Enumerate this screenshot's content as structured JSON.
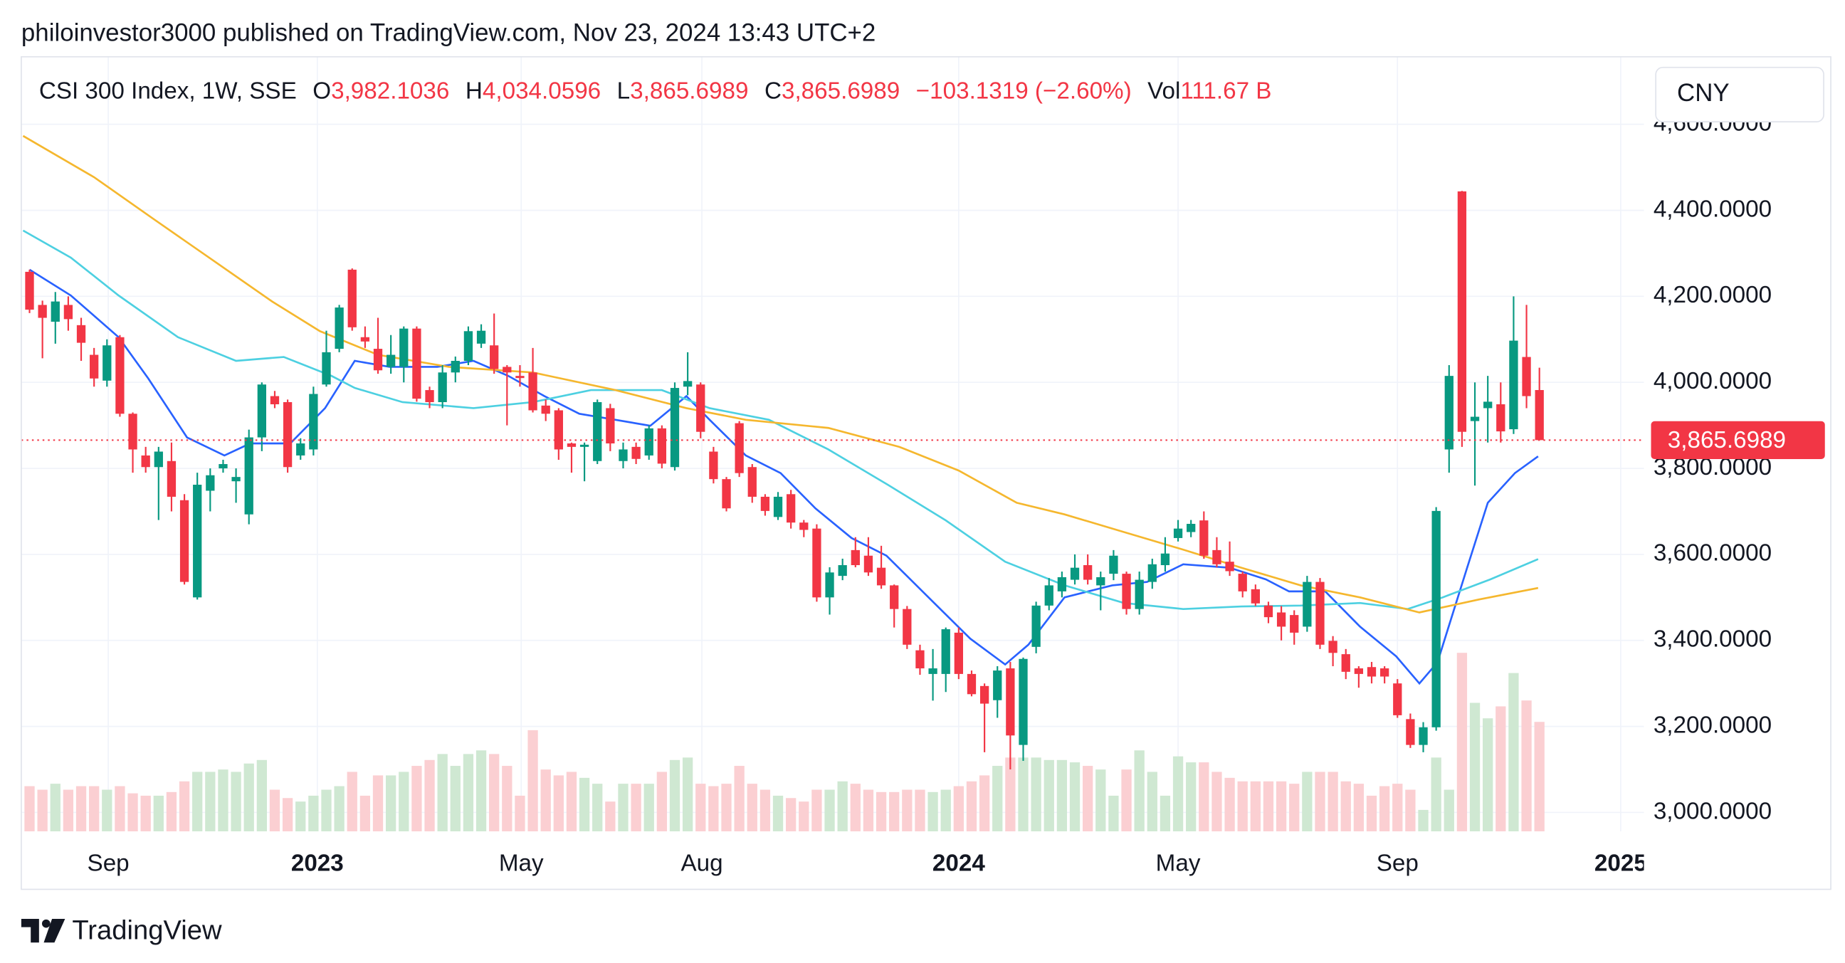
{
  "chart_data": {
    "type": "candlestick",
    "published": "philoinvestor3000 published on TradingView.com, Nov 23, 2024 13:43 UTC+2",
    "legend": {
      "symbol": "CSI 300 Index, 1W, SSE",
      "o": "O",
      "open": "3,982.1036",
      "h": "H",
      "high": "4,034.0596",
      "l": "L",
      "low": "3,865.6989",
      "c": "C",
      "close": "3,865.6989",
      "change": "−103.1319 (−2.60%)",
      "vol": "Vol",
      "volume": "111.67 B"
    },
    "currency": "CNY",
    "last_price_label": "3,865.6989",
    "brand": "TradingView",
    "colors": {
      "up": "#089981",
      "down": "#f23645",
      "up_volume": "#cfe8d2",
      "down_volume": "#fbcfd2"
    },
    "open": [
      4257,
      4180,
      4141,
      4180,
      4133,
      4064,
      4004,
      4105,
      3927,
      3830,
      3803,
      3817,
      3726,
      3500,
      3748,
      3800,
      3770,
      3693,
      3872,
      3968,
      3954,
      3830,
      3844,
      3995,
      4078,
      4262,
      4105,
      4078,
      4036,
      4036,
      4125,
      3982,
      3954,
      4023,
      4050,
      4090,
      4086,
      4036,
      4015,
      4023,
      3946,
      3935,
      3858,
      3850,
      3817,
      3940,
      3817,
      3850,
      3830,
      3893,
      3803,
      3990,
      3995,
      3839,
      3775,
      3905,
      3803,
      3734,
      3687,
      3740,
      3674,
      3660,
      3500,
      3550,
      3610,
      3597,
      3569,
      3528,
      3473,
      3377,
      3322,
      3322,
      3418,
      3322,
      3294,
      3261,
      3335,
      3157,
      3385,
      3481,
      3514,
      3541,
      3575,
      3528,
      3555,
      3555,
      3473,
      3536,
      3575,
      3638,
      3652,
      3679,
      3610,
      3583,
      3555,
      3519,
      3481,
      3465,
      3459,
      3432,
      3536,
      3399,
      3368,
      3335,
      3338,
      3335,
      3300,
      3217,
      3157,
      3198,
      3844,
      4444,
      3910,
      3940,
      3949,
      3891,
      4059,
      3982.1036
    ],
    "high": [
      4262,
      4190,
      4210,
      4200,
      4150,
      4080,
      4100,
      4110,
      3930,
      3850,
      3850,
      3860,
      3740,
      3790,
      3800,
      3820,
      3800,
      3890,
      4000,
      3980,
      3960,
      3870,
      3990,
      4120,
      4180,
      4265,
      4130,
      4150,
      4110,
      4130,
      4130,
      3990,
      4040,
      4060,
      4130,
      4135,
      4160,
      4040,
      4040,
      4080,
      3960,
      3940,
      3860,
      3860,
      3960,
      3950,
      3860,
      3860,
      3900,
      3900,
      4000,
      4070,
      4000,
      3850,
      3780,
      3910,
      3810,
      3740,
      3745,
      3750,
      3680,
      3670,
      3570,
      3590,
      3640,
      3640,
      3620,
      3530,
      3480,
      3390,
      3380,
      3430,
      3430,
      3330,
      3300,
      3340,
      3350,
      3360,
      3490,
      3545,
      3560,
      3600,
      3600,
      3560,
      3610,
      3560,
      3560,
      3590,
      3640,
      3680,
      3680,
      3700,
      3640,
      3630,
      3560,
      3530,
      3490,
      3480,
      3470,
      3550,
      3545,
      3410,
      3380,
      3340,
      3350,
      3340,
      3310,
      3230,
      3210,
      3710,
      4040,
      4445,
      4000,
      4015,
      4000,
      4200,
      4180,
      4034.0596
    ],
    "low": [
      4161,
      4056,
      4090,
      4120,
      4050,
      3990,
      3990,
      3920,
      3790,
      3790,
      3680,
      3700,
      3530,
      3495,
      3700,
      3790,
      3720,
      3670,
      3840,
      3940,
      3790,
      3820,
      3830,
      3990,
      4070,
      4120,
      4080,
      4020,
      4020,
      4000,
      3955,
      3940,
      3940,
      4000,
      4040,
      4080,
      4020,
      3900,
      3990,
      3930,
      3910,
      3820,
      3790,
      3770,
      3810,
      3840,
      3800,
      3810,
      3820,
      3800,
      3795,
      3970,
      3870,
      3765,
      3700,
      3780,
      3720,
      3690,
      3680,
      3660,
      3640,
      3490,
      3460,
      3540,
      3570,
      3550,
      3520,
      3430,
      3380,
      3320,
      3260,
      3280,
      3310,
      3270,
      3140,
      3220,
      3100,
      3120,
      3370,
      3470,
      3500,
      3530,
      3530,
      3470,
      3540,
      3460,
      3460,
      3520,
      3560,
      3630,
      3640,
      3590,
      3570,
      3550,
      3500,
      3480,
      3440,
      3400,
      3390,
      3420,
      3380,
      3340,
      3310,
      3290,
      3300,
      3300,
      3220,
      3150,
      3140,
      3190,
      3790,
      3850,
      3760,
      3860,
      3860,
      3880,
      3940,
      3865.6989
    ],
    "close": [
      4169,
      4150,
      4188,
      4147,
      4092,
      4009,
      4086,
      3927,
      3844,
      3803,
      3839,
      3734,
      3536,
      3762,
      3784,
      3810,
      3780,
      3872,
      3995,
      3949,
      3803,
      3858,
      3973,
      4070,
      4174,
      4128,
      4095,
      4028,
      4064,
      4125,
      3962,
      3954,
      4023,
      4050,
      4119,
      4120,
      4031,
      4023,
      4010,
      3935,
      3927,
      3844,
      3850,
      3855,
      3954,
      3858,
      3844,
      3822,
      3893,
      3811,
      3987,
      4003,
      3885,
      3775,
      3707,
      3789,
      3734,
      3701,
      3734,
      3674,
      3657,
      3500,
      3558,
      3575,
      3575,
      3558,
      3528,
      3473,
      3390,
      3335,
      3335,
      3426,
      3322,
      3275,
      3253,
      3330,
      3179,
      3357,
      3481,
      3528,
      3547,
      3569,
      3541,
      3547,
      3597,
      3473,
      3541,
      3577,
      3602,
      3660,
      3671,
      3597,
      3577,
      3561,
      3514,
      3486,
      3454,
      3432,
      3418,
      3536,
      3390,
      3371,
      3327,
      3322,
      3316,
      3316,
      3226,
      3157,
      3198,
      3701,
      4015,
      3885,
      3920,
      3955,
      3886,
      4097,
      3968,
      3865.6989
    ],
    "volume": [
      46.1,
      42.5,
      48.6,
      42.5,
      46.1,
      46.1,
      42.5,
      46.1,
      38.8,
      36.4,
      36.4,
      40.1,
      51.0,
      60.7,
      60.7,
      63.1,
      60.7,
      69.2,
      72.8,
      42.5,
      34.0,
      30.4,
      36.4,
      42.5,
      46.1,
      60.7,
      36.4,
      57.1,
      57.1,
      60.7,
      66.8,
      72.8,
      78.9,
      66.8,
      78.9,
      82.6,
      78.9,
      66.8,
      36.4,
      103.2,
      63.1,
      57.1,
      60.7,
      54.6,
      48.6,
      30.4,
      48.6,
      48.6,
      48.6,
      60.7,
      72.8,
      75.3,
      48.6,
      46.1,
      48.6,
      66.8,
      48.6,
      42.5,
      36.4,
      34.0,
      30.4,
      42.5,
      42.5,
      51.0,
      48.6,
      42.5,
      40.1,
      40.1,
      42.5,
      42.5,
      40.1,
      42.5,
      46.1,
      51.0,
      57.1,
      66.8,
      75.3,
      75.3,
      75.3,
      72.8,
      72.8,
      70.4,
      66.8,
      63.1,
      36.4,
      63.1,
      82.6,
      60.7,
      36.4,
      76.5,
      70.4,
      70.4,
      60.7,
      54.6,
      51.0,
      51.0,
      51.0,
      51.0,
      48.6,
      60.7,
      60.7,
      60.7,
      51.0,
      48.6,
      36.4,
      46.1,
      48.6,
      42.5,
      21.9,
      75.3,
      42.5,
      182.1,
      131.1,
      115.3,
      127.5,
      161.5,
      133.5,
      111.67
    ],
    "volume_ylim": [
      0,
      790
    ],
    "ma_lines": [
      {
        "color": "#2962ff",
        "x": [
          0,
          3.2,
          6.9,
          9.2,
          12.2,
          15.1,
          17.1,
          20.2,
          22.9,
          25.2,
          27.9,
          31.6,
          34.4,
          37.1,
          39.9,
          42.6,
          45.4,
          48.1,
          50.9,
          52.7,
          55.5,
          58.2,
          60.9,
          63.7,
          66.4,
          70.1,
          72.9,
          75.6,
          77.4,
          80.2,
          83.9,
          86.6,
          89.4,
          93.0,
          95.8,
          97.6,
          100.4,
          103.1,
          105.9,
          107.7,
          109.1,
          111.4,
          113.0,
          115.1,
          116.9
        ],
        "values": [
          4262,
          4202,
          4105,
          4009,
          3872,
          3830,
          3858,
          3858,
          3940,
          4050,
          4036,
          4036,
          4050,
          4015,
          3968,
          3927,
          3913,
          3899,
          3968,
          3913,
          3830,
          3789,
          3707,
          3638,
          3597,
          3487,
          3404,
          3344,
          3390,
          3500,
          3528,
          3536,
          3577,
          3569,
          3542,
          3514,
          3514,
          3432,
          3363,
          3300,
          3349,
          3569,
          3720,
          3789,
          3828
        ]
      },
      {
        "color": "#4dd0e1",
        "x": [
          -0.5,
          3.2,
          6.9,
          11.5,
          16.0,
          19.7,
          23.4,
          25.2,
          28.9,
          34.4,
          39.0,
          43.5,
          49.0,
          52.7,
          57.3,
          61.9,
          66.5,
          71.0,
          75.6,
          80.2,
          84.8,
          89.4,
          93.9,
          98.5,
          103.1,
          106.8,
          109.5,
          113.2,
          116.9
        ],
        "values": [
          4353,
          4290,
          4202,
          4105,
          4050,
          4059,
          4015,
          3987,
          3954,
          3940,
          3954,
          3982,
          3982,
          3940,
          3913,
          3844,
          3762,
          3679,
          3583,
          3528,
          3487,
          3473,
          3479,
          3481,
          3487,
          3473,
          3500,
          3542,
          3589
        ]
      },
      {
        "color": "#f5b72e",
        "x": [
          -0.5,
          5.0,
          9.6,
          14.2,
          18.8,
          22.5,
          27.0,
          32.5,
          39.0,
          45.4,
          50.9,
          55.5,
          61.9,
          67.4,
          72.0,
          76.5,
          80.2,
          84.8,
          89.4,
          93.9,
          98.5,
          103.1,
          107.7,
          112.3,
          116.9
        ],
        "values": [
          4573,
          4477,
          4380,
          4284,
          4188,
          4119,
          4064,
          4036,
          4023,
          3982,
          3940,
          3913,
          3894,
          3850,
          3795,
          3720,
          3693,
          3652,
          3611,
          3569,
          3528,
          3500,
          3465,
          3495,
          3522
        ]
      }
    ],
    "xlim": [
      -0.64,
      125.1
    ],
    "xticks": [
      {
        "value": 6.1,
        "label": "Sep"
      },
      {
        "value": 22.3,
        "label": "2023"
      },
      {
        "value": 38.1,
        "label": "May"
      },
      {
        "value": 52.1,
        "label": "Aug"
      },
      {
        "value": 72.0,
        "label": "2024"
      },
      {
        "value": 89.0,
        "label": "May"
      },
      {
        "value": 106.0,
        "label": "Sep"
      },
      {
        "value": 123.3,
        "label": "2025"
      }
    ],
    "ylim": [
      2956,
      4757
    ],
    "yticks": [
      {
        "value": 3000,
        "label": "3,000.0000"
      },
      {
        "value": 3200,
        "label": "3,200.0000"
      },
      {
        "value": 3400,
        "label": "3,400.0000"
      },
      {
        "value": 3600,
        "label": "3,600.0000"
      },
      {
        "value": 3800,
        "label": "3,800.0000"
      },
      {
        "value": 4000,
        "label": "4,000.0000"
      },
      {
        "value": 4200,
        "label": "4,200.0000"
      },
      {
        "value": 4400,
        "label": "4,400.0000"
      },
      {
        "value": 4600,
        "label": "4,600.0000"
      }
    ],
    "grid": true
  }
}
